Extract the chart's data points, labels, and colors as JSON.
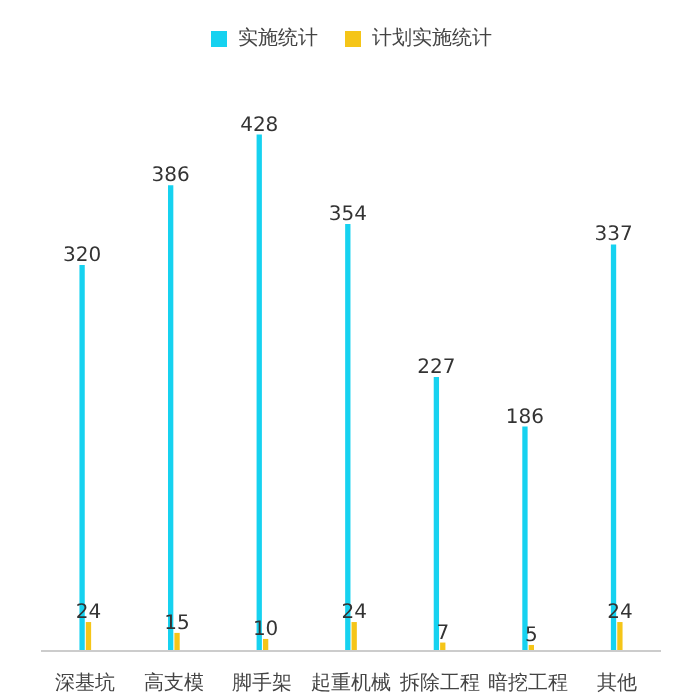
{
  "chart_data": {
    "type": "bar",
    "categories": [
      "深基坑",
      "高支模",
      "脚手架",
      "起重机械",
      "拆除工程",
      "暗挖工程",
      "其他"
    ],
    "series": [
      {
        "name": "实施统计",
        "color": "#16d2f0",
        "values": [
          320,
          386,
          428,
          354,
          227,
          186,
          337
        ]
      },
      {
        "name": "计划实施统计",
        "color": "#f5c518",
        "values": [
          24,
          15,
          10,
          24,
          7,
          5,
          24
        ]
      }
    ],
    "data_labels": true,
    "legend": "top",
    "grid": false,
    "tick_labels": "x"
  }
}
